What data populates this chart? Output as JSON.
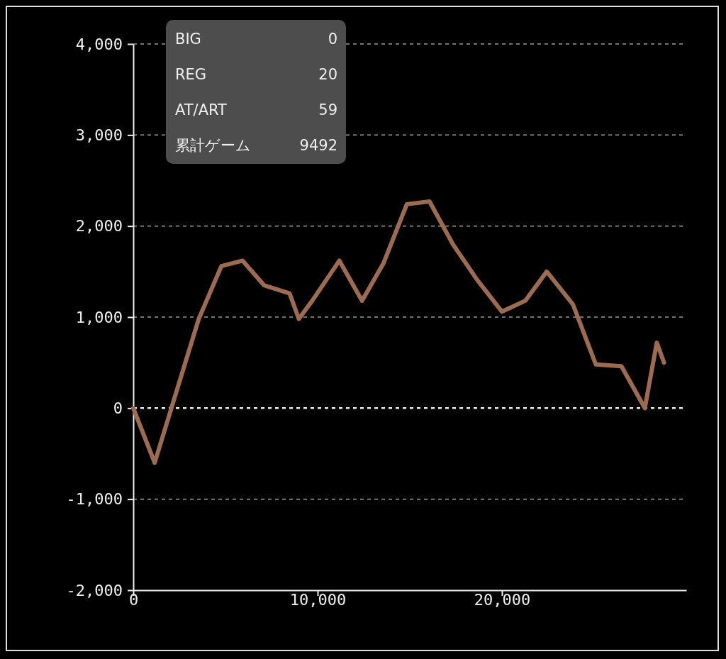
{
  "chart_data": {
    "type": "line",
    "x": [
      0,
      1160,
      3550,
      4780,
      5930,
      7090,
      8480,
      8980,
      9710,
      11180,
      12410,
      13570,
      14840,
      16070,
      17340,
      18650,
      20000,
      21270,
      22430,
      23850,
      25090,
      26480,
      27750,
      28400,
      28790
    ],
    "series": [
      {
        "color": "#9c6b50",
        "values": [
          0,
          -600,
          980,
          1560,
          1620,
          1350,
          1260,
          980,
          1180,
          1620,
          1180,
          1590,
          2240,
          2270,
          1800,
          1410,
          1060,
          1180,
          1500,
          1140,
          480,
          460,
          0,
          720,
          500
        ]
      }
    ],
    "xlim": [
      0,
      30000
    ],
    "xticks": [
      0,
      {
        "value": 10000,
        "label": "10,000"
      },
      {
        "value": 20000,
        "label": "20,000"
      }
    ],
    "ylim": [
      -2000,
      4000
    ],
    "yticks": [
      {
        "value": -2000,
        "label": "-2,000"
      },
      {
        "value": -1000,
        "label": "-1,000"
      },
      0,
      {
        "value": 1000,
        "label": "1,000"
      },
      {
        "value": 2000,
        "label": "2,000"
      },
      {
        "value": 3000,
        "label": "3,000"
      },
      {
        "value": 4000,
        "label": "4,000"
      }
    ],
    "grid": "y",
    "line_style": "solid",
    "marker": "none",
    "ref_lines": [
      {
        "axis": "y",
        "value": 0,
        "color": "#eeeeee",
        "line_style": "dashed"
      }
    ],
    "annotations": [
      "BIG",
      "0",
      "REG",
      "20",
      "AT/ART",
      "59",
      "累計ゲーム",
      "9492"
    ]
  }
}
